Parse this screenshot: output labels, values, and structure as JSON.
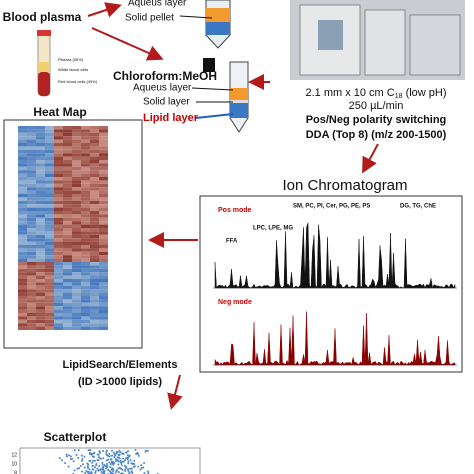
{
  "extraction": {
    "blood_plasma": "Blood plasma",
    "top_tube_labels": [
      "Aqueus layer",
      "Solid pellet"
    ],
    "solvent": "Chloroform:MeOH",
    "tube_labels": [
      "Aqueus layer",
      "Solid layer",
      "Lipid layer"
    ]
  },
  "lc_ms": {
    "column_prefix": "2.1 mm x 10 cm C",
    "column_sub": "18",
    "column_suffix": " (low pH)",
    "flow": "250 µL/min",
    "polarity": "Pos/Neg polarity switching",
    "dda": "DDA (Top 8) (m/z 200-1500)"
  },
  "chromatogram": {
    "title": "Ion Chromatogram",
    "pos_mode": "Pos mode",
    "neg_mode": "Neg mode",
    "groups": [
      "FFA",
      "LPC, LPE, MG",
      "SM, PC, PI, Cer, PG, PE, PS",
      "DG, TG, ChE"
    ]
  },
  "heatmap": {
    "title": "Heat Map"
  },
  "software": {
    "name": "LipidSearch/Elements",
    "ids": "(ID >1000 lipids)"
  },
  "scatterplot": {
    "title": "Scatterplot",
    "yticks": [
      "12",
      "10",
      "8"
    ]
  }
}
